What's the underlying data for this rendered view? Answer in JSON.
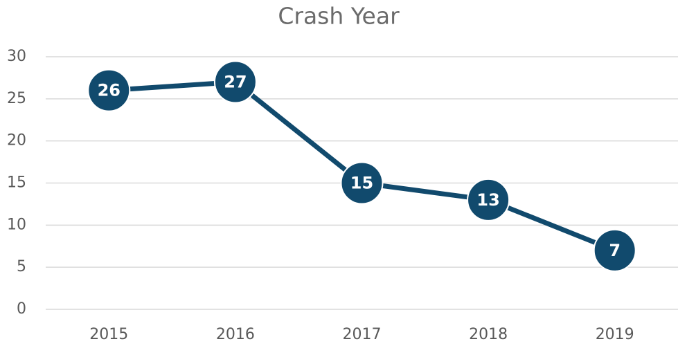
{
  "chart_data": {
    "type": "line",
    "title": "Crash Year",
    "categories": [
      "2015",
      "2016",
      "2017",
      "2018",
      "2019"
    ],
    "values": [
      26,
      27,
      15,
      13,
      7
    ],
    "color": "#114a6d",
    "ylim": [
      0,
      30
    ],
    "yticks": [
      0,
      5,
      10,
      15,
      20,
      25,
      30
    ],
    "grid": true
  }
}
